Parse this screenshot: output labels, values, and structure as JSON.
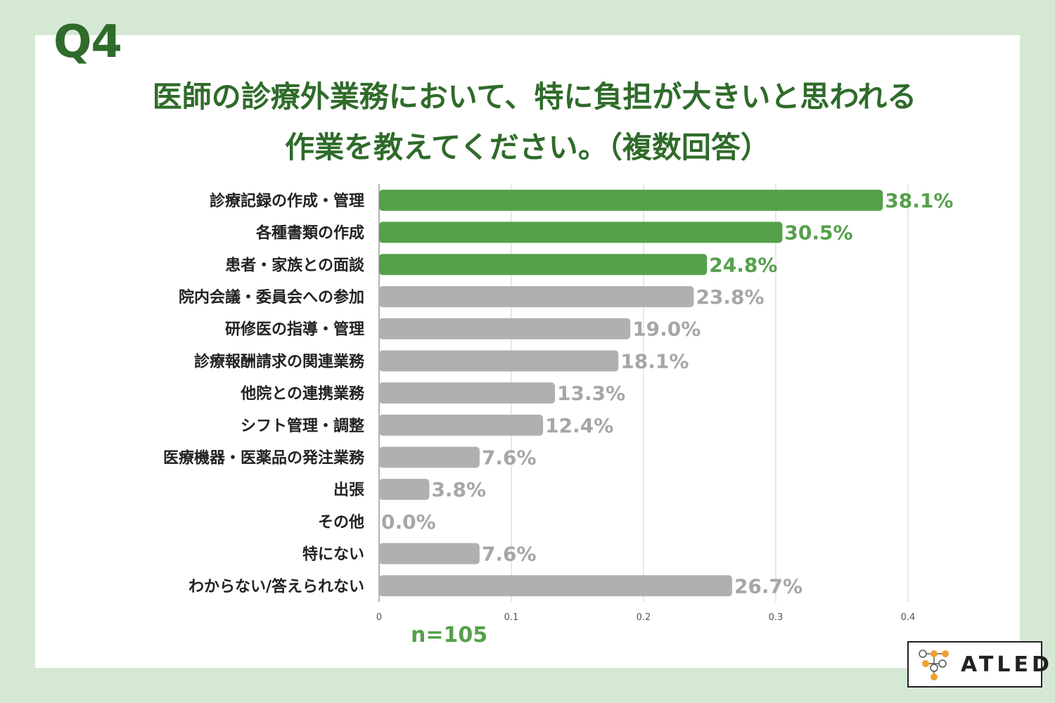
{
  "question_label": "Q4",
  "title_lines": [
    "医師の診療外業務において、特に負担が大きいと思われる",
    "作業を教えてください。（複数回答）"
  ],
  "sample_size": "n=105",
  "brand": {
    "name": "ATLED"
  },
  "colors": {
    "background": "#d5e8d4",
    "title": "#2f6b2a",
    "highlight_bar": "#55a04b",
    "normal_bar": "#b0b0b0",
    "normal_label": "#a6a6a6",
    "logo_orange": "#f0a030"
  },
  "chart_data": {
    "type": "bar",
    "orientation": "horizontal",
    "categories": [
      "診療記録の作成・管理",
      "各種書類の作成",
      "患者・家族との面談",
      "院内会議・委員会への参加",
      "研修医の指導・管理",
      "診療報酬請求の関連業務",
      "他院との連携業務",
      "シフト管理・調整",
      "医療機器・医薬品の発注業務",
      "出張",
      "その他",
      "特にない",
      "わからない/答えられない"
    ],
    "values": [
      0.381,
      0.305,
      0.248,
      0.238,
      0.19,
      0.181,
      0.133,
      0.124,
      0.076,
      0.038,
      0.0,
      0.076,
      0.267
    ],
    "value_labels": [
      "38.1%",
      "30.5%",
      "24.8%",
      "23.8%",
      "19.0%",
      "18.1%",
      "13.3%",
      "12.4%",
      "7.6%",
      "3.8%",
      "0.0%",
      "7.6%",
      "26.7%"
    ],
    "highlighted": [
      true,
      true,
      true,
      false,
      false,
      false,
      false,
      false,
      false,
      false,
      false,
      false,
      false
    ],
    "x_ticks": [
      0,
      0.1,
      0.2,
      0.3,
      0.4
    ],
    "x_tick_labels": [
      "0",
      "0.1",
      "0.2",
      "0.3",
      "0.4"
    ],
    "xlim": [
      0,
      0.4
    ],
    "grid": true
  }
}
